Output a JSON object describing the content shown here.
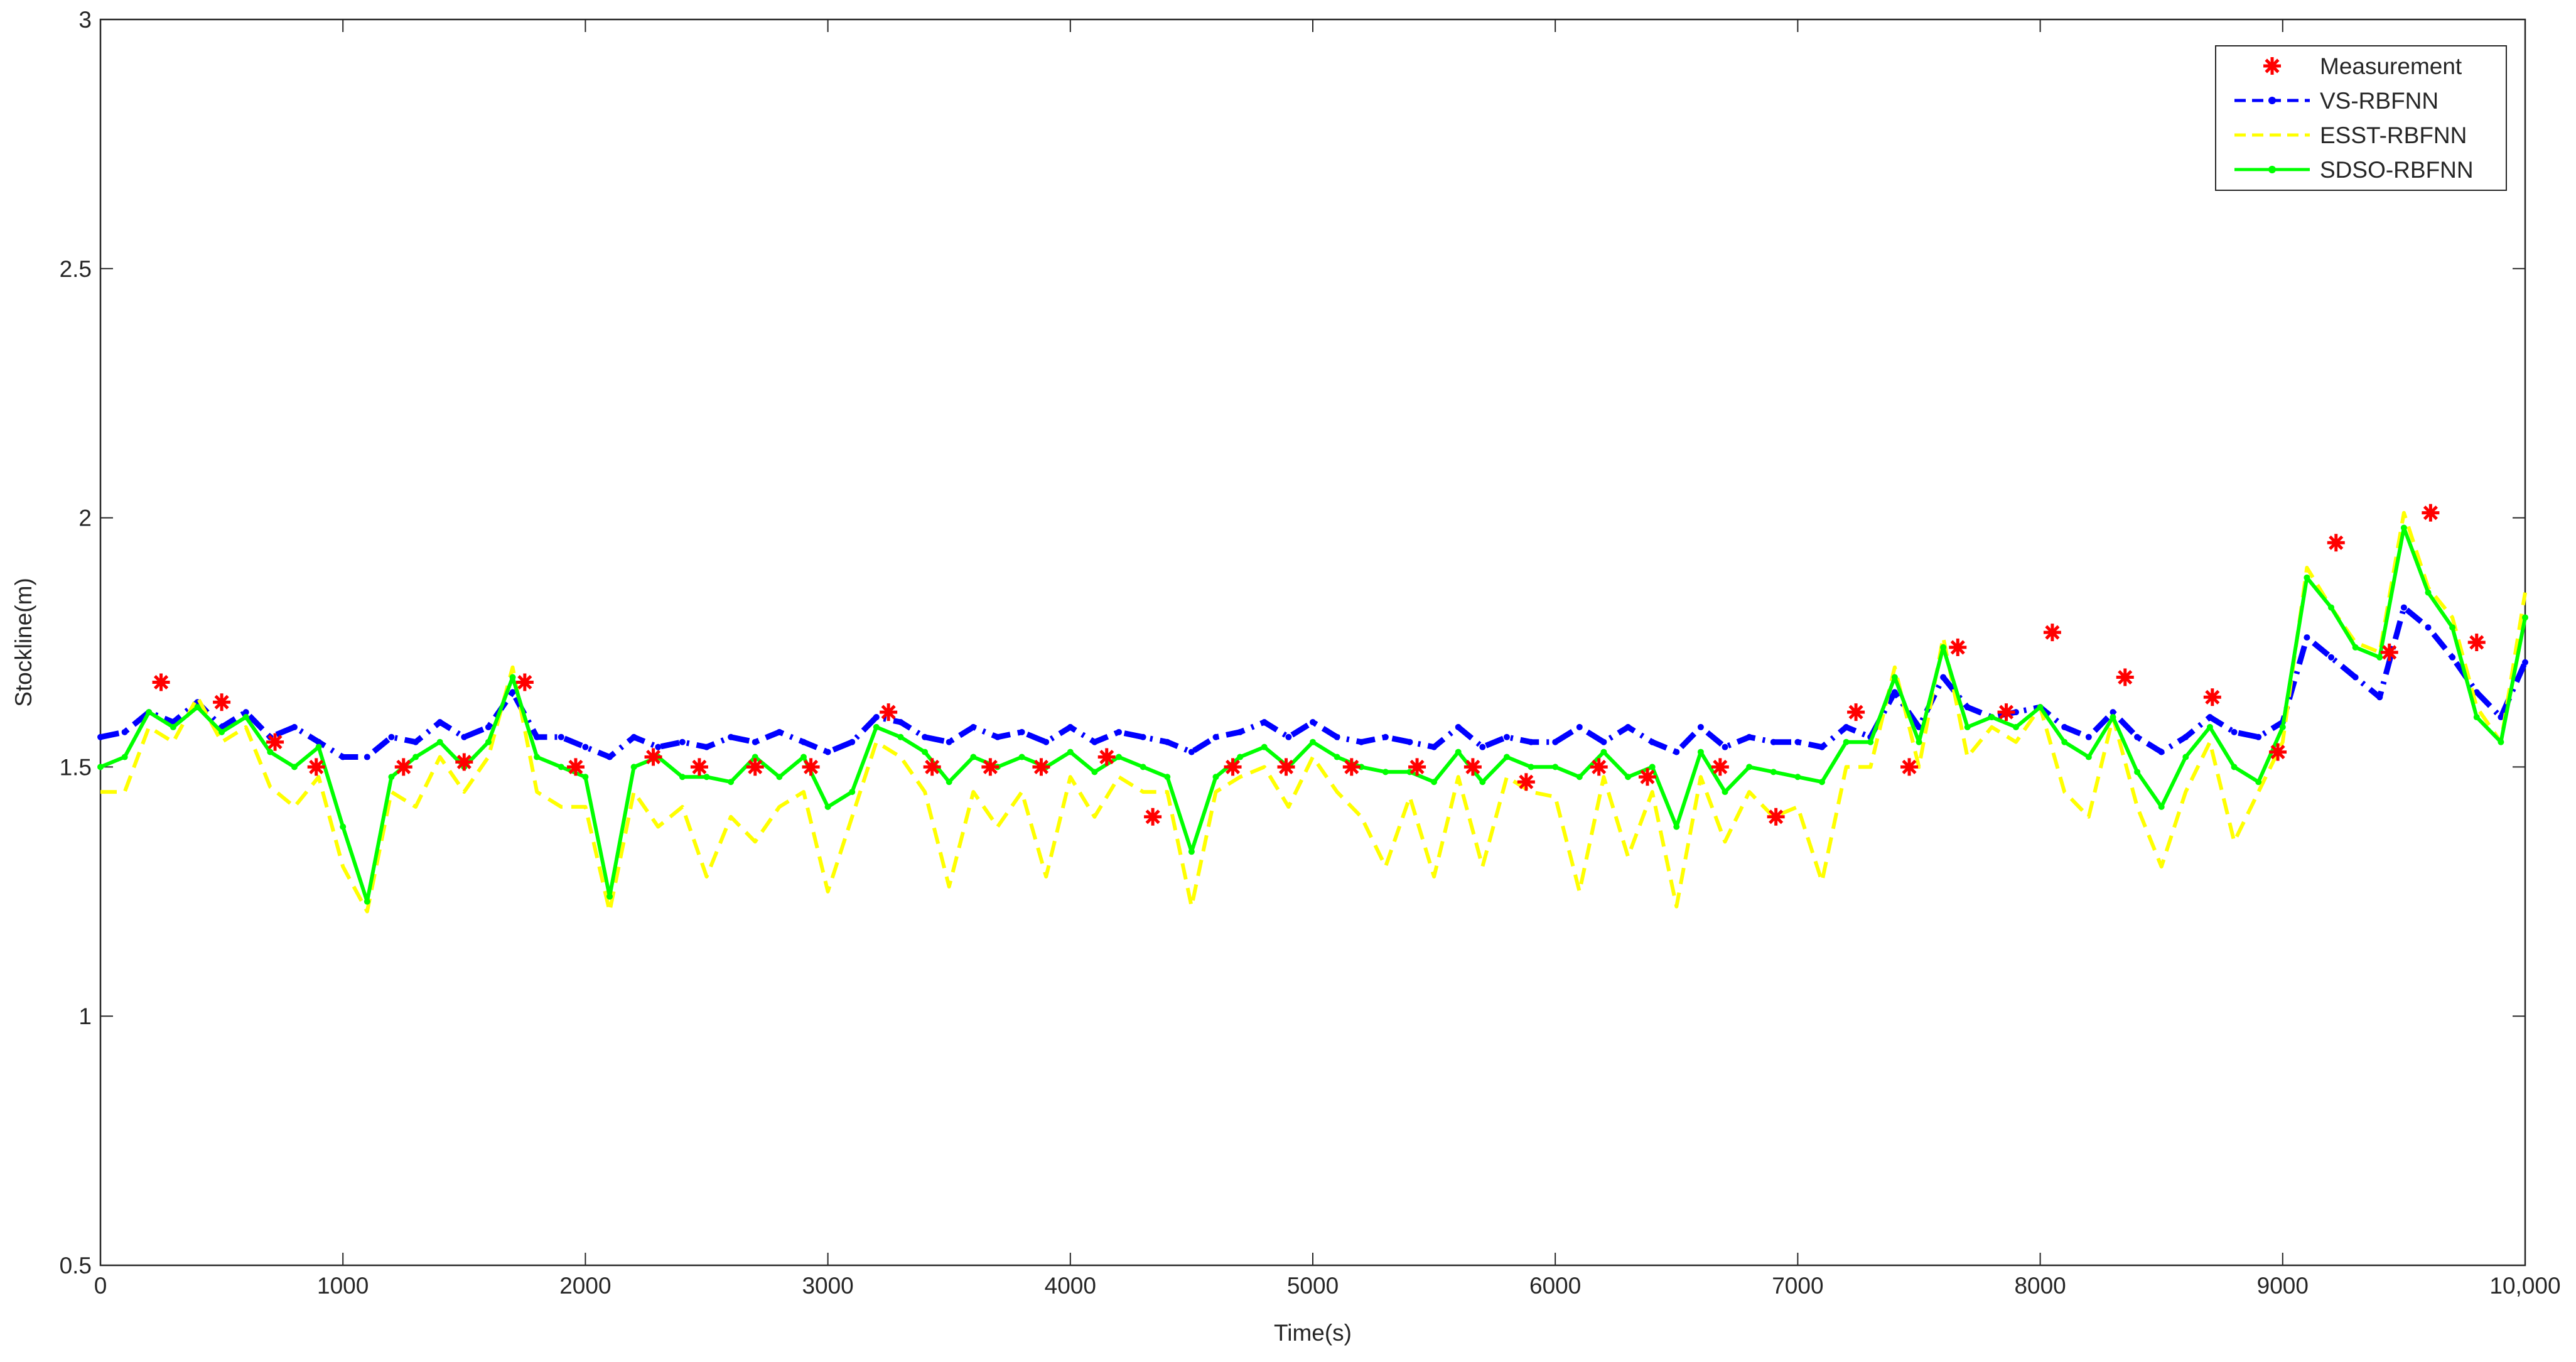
{
  "chart_data": {
    "type": "line",
    "x_label": "Time(s)",
    "y_label": "Stockline(m)",
    "xlim": [
      0,
      10000
    ],
    "ylim": [
      0.5,
      3
    ],
    "xticks": [
      0,
      1000,
      2000,
      3000,
      4000,
      5000,
      6000,
      7000,
      8000,
      9000,
      {
        "value": 10000,
        "label": "10,000"
      }
    ],
    "yticks": [
      0.5,
      1,
      1.5,
      2,
      2.5,
      3
    ],
    "grid": false,
    "legend": "upper right",
    "x": [
      0,
      100,
      200,
      300,
      400,
      500,
      600,
      700,
      800,
      900,
      1000,
      1100,
      1200,
      1300,
      1400,
      1500,
      1600,
      1700,
      1800,
      1900,
      2000,
      2100,
      2200,
      2300,
      2400,
      2500,
      2600,
      2700,
      2800,
      2900,
      3000,
      3100,
      3200,
      3300,
      3400,
      3500,
      3600,
      3700,
      3800,
      3900,
      4000,
      4100,
      4200,
      4300,
      4400,
      4500,
      4600,
      4700,
      4800,
      4900,
      5000,
      5100,
      5200,
      5300,
      5400,
      5500,
      5600,
      5700,
      5800,
      5900,
      6000,
      6100,
      6200,
      6300,
      6400,
      6500,
      6600,
      6700,
      6800,
      6900,
      7000,
      7100,
      7200,
      7300,
      7400,
      7500,
      7600,
      7700,
      7800,
      7900,
      8000,
      8100,
      8200,
      8300,
      8400,
      8500,
      8600,
      8700,
      8800,
      8900,
      9000,
      9100,
      9200,
      9300,
      9400,
      9500,
      9600,
      9700,
      9800,
      9900,
      10000
    ],
    "series": [
      {
        "name": "Measurement",
        "color": "#ff0000",
        "style": "marker",
        "x": [
          250,
          500,
          720,
          890,
          1250,
          1500,
          1750,
          1960,
          2280,
          2470,
          2700,
          2930,
          3250,
          3430,
          3670,
          3880,
          4150,
          4340,
          4670,
          4890,
          5160,
          5430,
          5660,
          5880,
          6180,
          6380,
          6680,
          6910,
          7240,
          7460,
          7660,
          7860,
          8050,
          8350,
          8710,
          8980,
          9220,
          9440,
          9610,
          9800
        ],
        "values": [
          1.67,
          1.63,
          1.55,
          1.5,
          1.5,
          1.51,
          1.67,
          1.5,
          1.52,
          1.5,
          1.5,
          1.5,
          1.61,
          1.5,
          1.5,
          1.5,
          1.52,
          1.4,
          1.5,
          1.5,
          1.5,
          1.5,
          1.5,
          1.47,
          1.5,
          1.48,
          1.5,
          1.4,
          1.61,
          1.5,
          1.74,
          1.61,
          1.77,
          1.68,
          1.64,
          1.53,
          1.95,
          1.73,
          2.01,
          1.75
        ]
      },
      {
        "name": "VS-RBFNN",
        "color": "#0000ff",
        "style": "dashed-dot",
        "values": [
          1.56,
          1.57,
          1.61,
          1.59,
          1.63,
          1.58,
          1.61,
          1.56,
          1.58,
          1.55,
          1.52,
          1.52,
          1.56,
          1.55,
          1.59,
          1.56,
          1.58,
          1.65,
          1.56,
          1.56,
          1.54,
          1.52,
          1.56,
          1.54,
          1.55,
          1.54,
          1.56,
          1.55,
          1.57,
          1.55,
          1.53,
          1.55,
          1.6,
          1.59,
          1.56,
          1.55,
          1.58,
          1.56,
          1.57,
          1.55,
          1.58,
          1.55,
          1.57,
          1.56,
          1.55,
          1.53,
          1.56,
          1.57,
          1.59,
          1.56,
          1.59,
          1.56,
          1.55,
          1.56,
          1.55,
          1.54,
          1.58,
          1.54,
          1.56,
          1.55,
          1.55,
          1.58,
          1.55,
          1.58,
          1.55,
          1.53,
          1.58,
          1.54,
          1.56,
          1.55,
          1.55,
          1.54,
          1.58,
          1.56,
          1.65,
          1.58,
          1.68,
          1.62,
          1.6,
          1.61,
          1.62,
          1.58,
          1.56,
          1.61,
          1.56,
          1.53,
          1.56,
          1.6,
          1.57,
          1.56,
          1.59,
          1.76,
          1.72,
          1.68,
          1.64,
          1.82,
          1.78,
          1.72,
          1.65,
          1.6,
          1.71
        ]
      },
      {
        "name": "ESST-RBFNN",
        "color": "#ffff00",
        "style": "dashed",
        "values": [
          1.45,
          1.45,
          1.58,
          1.55,
          1.64,
          1.55,
          1.58,
          1.46,
          1.42,
          1.48,
          1.3,
          1.21,
          1.45,
          1.42,
          1.52,
          1.45,
          1.52,
          1.7,
          1.45,
          1.42,
          1.42,
          1.21,
          1.45,
          1.38,
          1.42,
          1.28,
          1.4,
          1.35,
          1.42,
          1.45,
          1.25,
          1.4,
          1.55,
          1.52,
          1.45,
          1.26,
          1.45,
          1.38,
          1.45,
          1.28,
          1.48,
          1.4,
          1.48,
          1.45,
          1.45,
          1.22,
          1.45,
          1.48,
          1.5,
          1.42,
          1.52,
          1.45,
          1.4,
          1.3,
          1.44,
          1.28,
          1.48,
          1.3,
          1.48,
          1.45,
          1.44,
          1.25,
          1.48,
          1.32,
          1.45,
          1.22,
          1.48,
          1.35,
          1.45,
          1.4,
          1.42,
          1.27,
          1.5,
          1.5,
          1.7,
          1.5,
          1.76,
          1.52,
          1.58,
          1.55,
          1.62,
          1.45,
          1.4,
          1.6,
          1.42,
          1.3,
          1.45,
          1.55,
          1.35,
          1.45,
          1.55,
          1.9,
          1.82,
          1.75,
          1.73,
          2.01,
          1.86,
          1.8,
          1.62,
          1.55,
          1.85
        ]
      },
      {
        "name": "SDSO-RBFNN",
        "color": "#00ff00",
        "style": "solid-dot",
        "values": [
          1.5,
          1.52,
          1.61,
          1.58,
          1.62,
          1.57,
          1.6,
          1.53,
          1.5,
          1.54,
          1.38,
          1.23,
          1.48,
          1.52,
          1.55,
          1.5,
          1.55,
          1.68,
          1.52,
          1.5,
          1.48,
          1.24,
          1.5,
          1.52,
          1.48,
          1.48,
          1.47,
          1.52,
          1.48,
          1.52,
          1.42,
          1.45,
          1.58,
          1.56,
          1.53,
          1.47,
          1.52,
          1.5,
          1.52,
          1.5,
          1.53,
          1.49,
          1.52,
          1.5,
          1.48,
          1.33,
          1.48,
          1.52,
          1.54,
          1.5,
          1.55,
          1.52,
          1.5,
          1.49,
          1.49,
          1.47,
          1.53,
          1.47,
          1.52,
          1.5,
          1.5,
          1.48,
          1.53,
          1.48,
          1.5,
          1.38,
          1.53,
          1.45,
          1.5,
          1.49,
          1.48,
          1.47,
          1.55,
          1.55,
          1.68,
          1.55,
          1.74,
          1.58,
          1.6,
          1.58,
          1.62,
          1.55,
          1.52,
          1.6,
          1.49,
          1.42,
          1.52,
          1.58,
          1.5,
          1.47,
          1.58,
          1.88,
          1.82,
          1.74,
          1.72,
          1.98,
          1.85,
          1.78,
          1.6,
          1.55,
          1.8
        ]
      }
    ]
  }
}
